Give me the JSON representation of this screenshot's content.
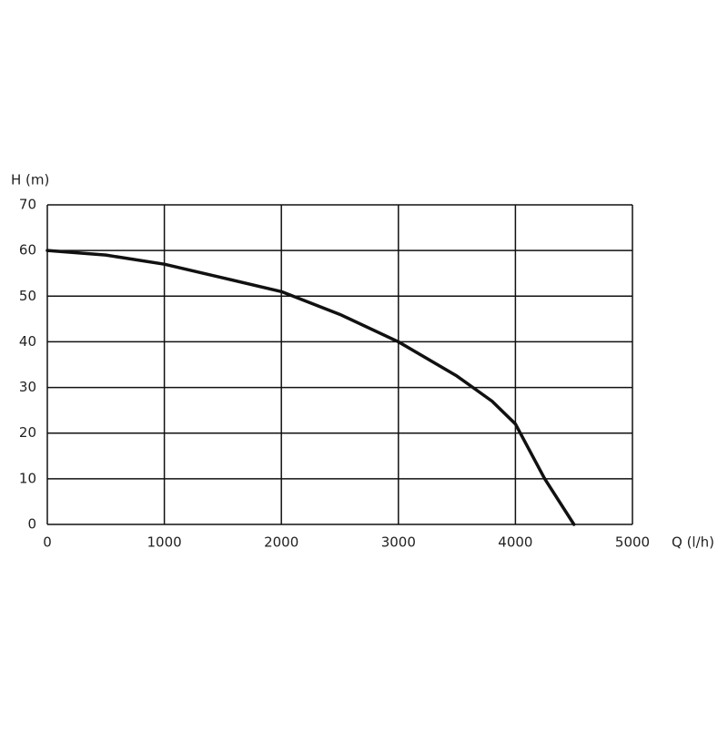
{
  "chart_data": {
    "type": "line",
    "x_label": "Q (l/h)",
    "y_label": "H (m)",
    "x": [
      0,
      500,
      1000,
      1500,
      2000,
      2500,
      3000,
      3500,
      3800,
      4000,
      4250,
      4500
    ],
    "values": [
      60,
      59,
      57,
      54,
      51,
      46,
      40,
      32.5,
      27,
      22,
      10,
      0
    ],
    "color": "#111111",
    "xlim": [
      0,
      5000
    ],
    "xticks": [
      0,
      1000,
      2000,
      3000,
      4000,
      5000
    ],
    "ylim": [
      0,
      70
    ],
    "yticks": [
      0,
      10,
      20,
      30,
      40,
      50,
      60,
      70
    ],
    "grid": true
  }
}
